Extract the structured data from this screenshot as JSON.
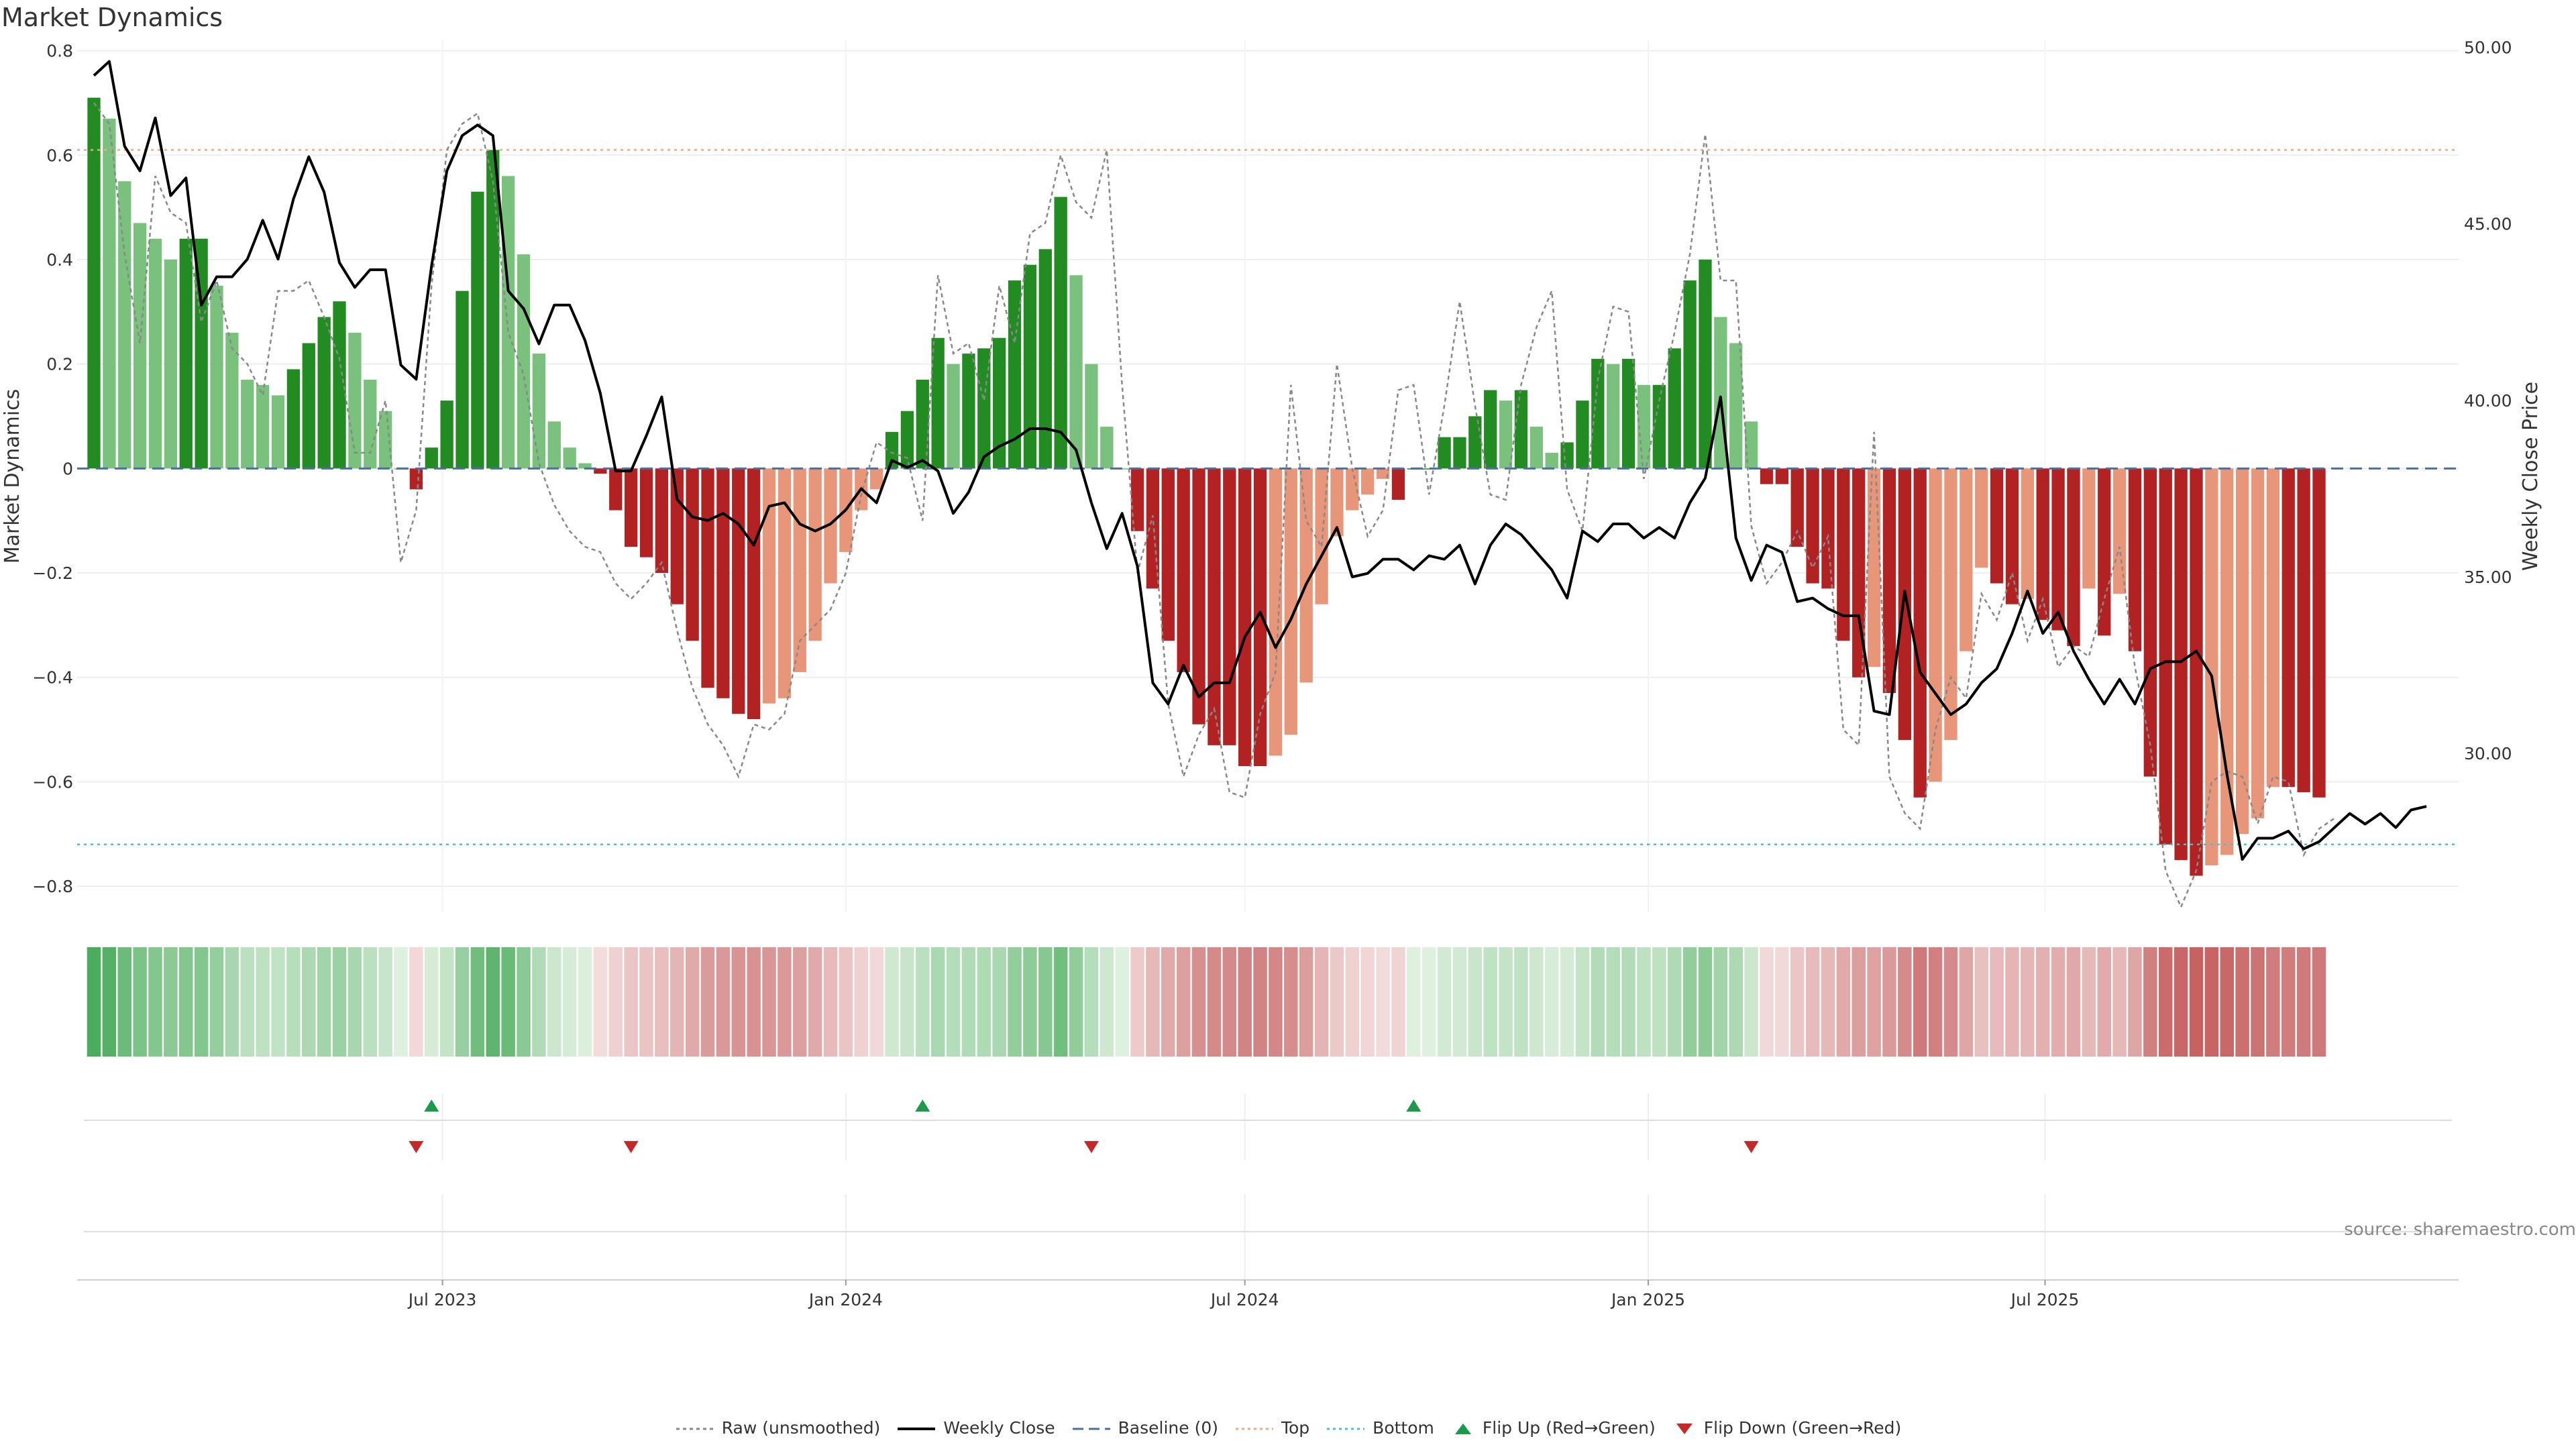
{
  "title": "Market Dynamics",
  "source": "source: sharemaestro.com",
  "colors": {
    "strong_green": "#228B22",
    "light_green": "#7BC17E",
    "strong_red": "#B22222",
    "light_red": "#E8967A",
    "top_line": "#F4A582",
    "bottom_line": "#4BC0C8",
    "baseline": "#4A6FA5",
    "close_line": "#000000",
    "raw_line": "#888888",
    "flip_up": "#1A9A4A",
    "flip_down": "#C62828"
  },
  "chart_data": {
    "type": "bar",
    "title": "Market Dynamics",
    "ylabel": "Market Dynamics",
    "y2label": "Weekly Close Price",
    "ylim": [
      -0.85,
      0.82
    ],
    "y2lim": [
      25.5,
      50.2
    ],
    "y_ticks": [
      -0.8,
      -0.6,
      -0.4,
      -0.2,
      0,
      0.2,
      0.4,
      0.6,
      0.8
    ],
    "y_tick_labels": [
      "−0.8",
      "−0.6",
      "−0.4",
      "−0.2",
      "0",
      "0.2",
      "0.4",
      "0.6",
      "0.8"
    ],
    "y2_ticks": [
      30,
      35,
      40,
      45,
      50
    ],
    "y2_tick_labels": [
      "30.00",
      "35.00",
      "40.00",
      "45.00",
      "50.00"
    ],
    "x_start": "2023-01-23",
    "x_end": "2025-12-29",
    "x_ticks": [
      "2023-07-01",
      "2024-01-01",
      "2024-07-01",
      "2025-01-01",
      "2025-07-01"
    ],
    "x_tick_labels": [
      "Jul 2023",
      "Jan 2024",
      "Jul 2024",
      "Jan 2025",
      "Jul 2025"
    ],
    "top_level": 0.61,
    "bottom_level": -0.72,
    "baseline": 0,
    "grid": true,
    "legend_position": "bottom-center",
    "series": [
      {
        "name": "Market Dynamics",
        "values": [
          0.71,
          0.67,
          0.55,
          0.47,
          0.44,
          0.4,
          0.44,
          0.44,
          0.35,
          0.26,
          0.17,
          0.16,
          0.14,
          0.19,
          0.24,
          0.29,
          0.32,
          0.26,
          0.17,
          0.11,
          0.0,
          -0.04,
          0.04,
          0.13,
          0.34,
          0.53,
          0.61,
          0.56,
          0.41,
          0.22,
          0.09,
          0.04,
          0.01,
          -0.01,
          -0.08,
          -0.15,
          -0.17,
          -0.2,
          -0.26,
          -0.33,
          -0.42,
          -0.44,
          -0.47,
          -0.48,
          -0.45,
          -0.44,
          -0.39,
          -0.33,
          -0.22,
          -0.16,
          -0.08,
          -0.04,
          0.07,
          0.11,
          0.17,
          0.25,
          0.2,
          0.22,
          0.23,
          0.25,
          0.36,
          0.39,
          0.42,
          0.52,
          0.37,
          0.2,
          0.08,
          0.0,
          -0.12,
          -0.23,
          -0.33,
          -0.39,
          -0.49,
          -0.53,
          -0.53,
          -0.57,
          -0.57,
          -0.55,
          -0.51,
          -0.41,
          -0.26,
          -0.13,
          -0.08,
          -0.05,
          -0.02,
          -0.06,
          0.0,
          0.0,
          0.06,
          0.06,
          0.1,
          0.15,
          0.13,
          0.15,
          0.08,
          0.03,
          0.05,
          0.13,
          0.21,
          0.2,
          0.21,
          0.16,
          0.16,
          0.23,
          0.36,
          0.4,
          0.29,
          0.24,
          0.09,
          -0.03,
          -0.03,
          -0.15,
          -0.22,
          -0.23,
          -0.33,
          -0.4,
          -0.38,
          -0.43,
          -0.52,
          -0.63,
          -0.6,
          -0.52,
          -0.35,
          -0.19,
          -0.22,
          -0.26,
          -0.25,
          -0.29,
          -0.31,
          -0.34,
          -0.23,
          -0.32,
          -0.24,
          -0.35,
          -0.59,
          -0.72,
          -0.75,
          -0.78,
          -0.76,
          -0.74,
          -0.7,
          -0.67,
          -0.61,
          -0.61,
          -0.62,
          -0.63
        ]
      },
      {
        "name": "Raw (unsmoothed)",
        "values": [
          0.7,
          0.66,
          0.41,
          0.24,
          0.56,
          0.49,
          0.47,
          0.28,
          0.36,
          0.23,
          0.2,
          0.14,
          0.34,
          0.34,
          0.36,
          0.29,
          0.21,
          0.03,
          0.03,
          0.13,
          -0.18,
          -0.08,
          0.35,
          0.61,
          0.66,
          0.68,
          0.55,
          0.26,
          0.18,
          0.01,
          -0.07,
          -0.12,
          -0.15,
          -0.16,
          -0.22,
          -0.25,
          -0.22,
          -0.18,
          -0.31,
          -0.42,
          -0.49,
          -0.53,
          -0.59,
          -0.49,
          -0.5,
          -0.47,
          -0.33,
          -0.3,
          -0.27,
          -0.2,
          -0.05,
          0.05,
          0.03,
          0.02,
          -0.1,
          0.37,
          0.22,
          0.24,
          0.13,
          0.35,
          0.24,
          0.45,
          0.47,
          0.6,
          0.51,
          0.48,
          0.61,
          0.16,
          -0.2,
          -0.09,
          -0.45,
          -0.59,
          -0.51,
          -0.46,
          -0.62,
          -0.63,
          -0.47,
          -0.39,
          0.16,
          -0.1,
          -0.15,
          0.2,
          0.0,
          -0.13,
          -0.08,
          0.15,
          0.16,
          -0.05,
          0.12,
          0.32,
          0.12,
          -0.05,
          -0.06,
          0.16,
          0.27,
          0.34,
          -0.04,
          -0.12,
          0.17,
          0.31,
          0.3,
          -0.02,
          0.13,
          0.26,
          0.41,
          0.64,
          0.36,
          0.36,
          -0.11,
          -0.22,
          -0.18,
          -0.12,
          -0.19,
          -0.13,
          -0.5,
          -0.53,
          0.07,
          -0.59,
          -0.66,
          -0.69,
          -0.5,
          -0.4,
          -0.44,
          -0.24,
          -0.29,
          -0.2,
          -0.33,
          -0.25,
          -0.38,
          -0.34,
          -0.36,
          -0.25,
          -0.15,
          -0.38,
          -0.53,
          -0.77,
          -0.84,
          -0.77,
          -0.6,
          -0.58,
          -0.59,
          -0.68,
          -0.59,
          -0.6,
          -0.74,
          -0.69,
          -0.67
        ]
      },
      {
        "name": "Weekly Close",
        "values": [
          49.2,
          49.6,
          47.2,
          46.5,
          48.0,
          45.8,
          46.3,
          42.7,
          43.5,
          43.5,
          44.0,
          45.1,
          44.0,
          45.7,
          46.9,
          45.9,
          43.9,
          43.2,
          43.7,
          43.7,
          41.0,
          40.6,
          43.8,
          46.5,
          47.5,
          47.8,
          47.5,
          43.1,
          42.6,
          41.6,
          42.7,
          42.7,
          41.7,
          40.2,
          38.0,
          38.0,
          39.0,
          40.1,
          37.2,
          36.7,
          36.6,
          36.8,
          36.5,
          35.9,
          37.0,
          37.1,
          36.5,
          36.3,
          36.5,
          36.9,
          37.5,
          37.1,
          38.3,
          38.1,
          38.3,
          38.0,
          36.8,
          37.4,
          38.4,
          38.7,
          38.9,
          39.2,
          39.2,
          39.1,
          38.6,
          37.1,
          35.8,
          36.8,
          35.3,
          32.0,
          31.4,
          32.5,
          31.6,
          32.0,
          32.0,
          33.3,
          34.0,
          33.0,
          33.8,
          34.8,
          35.6,
          36.4,
          35.0,
          35.1,
          35.5,
          35.5,
          35.2,
          35.6,
          35.5,
          35.9,
          34.8,
          35.9,
          36.5,
          36.2,
          35.7,
          35.2,
          34.4,
          36.3,
          36.0,
          36.5,
          36.5,
          36.1,
          36.4,
          36.1,
          37.1,
          37.8,
          40.1,
          36.1,
          34.9,
          35.9,
          35.7,
          34.3,
          34.4,
          34.1,
          33.9,
          33.9,
          31.2,
          31.1,
          34.6,
          32.3,
          31.7,
          31.1,
          31.4,
          32.0,
          32.4,
          33.4,
          34.6,
          33.4,
          34.0,
          32.9,
          32.1,
          31.4,
          32.1,
          31.4,
          32.4,
          32.6,
          32.6,
          32.9,
          32.2,
          29.4,
          27.0,
          27.6,
          27.6,
          27.8,
          27.3,
          27.5,
          27.9,
          28.3,
          28.0,
          28.3,
          27.9,
          28.4,
          28.5
        ]
      }
    ],
    "heat_strip": [
      0.71,
      0.67,
      0.55,
      0.47,
      0.44,
      0.4,
      0.44,
      0.44,
      0.35,
      0.26,
      0.17,
      0.16,
      0.14,
      0.19,
      0.24,
      0.29,
      0.32,
      0.26,
      0.17,
      0.11,
      0.0,
      -0.04,
      0.04,
      0.13,
      0.34,
      0.53,
      0.61,
      0.56,
      0.41,
      0.22,
      0.09,
      0.04,
      0.01,
      -0.01,
      -0.08,
      -0.15,
      -0.17,
      -0.2,
      -0.26,
      -0.33,
      -0.42,
      -0.44,
      -0.47,
      -0.48,
      -0.45,
      -0.44,
      -0.39,
      -0.33,
      -0.22,
      -0.16,
      -0.08,
      -0.04,
      0.07,
      0.11,
      0.17,
      0.25,
      0.2,
      0.22,
      0.23,
      0.25,
      0.36,
      0.39,
      0.42,
      0.52,
      0.37,
      0.2,
      0.08,
      0.0,
      -0.12,
      -0.23,
      -0.33,
      -0.39,
      -0.49,
      -0.53,
      -0.53,
      -0.57,
      -0.57,
      -0.55,
      -0.51,
      -0.41,
      -0.26,
      -0.13,
      -0.08,
      -0.05,
      -0.02,
      -0.06,
      0.0,
      0.0,
      0.06,
      0.06,
      0.1,
      0.15,
      0.13,
      0.15,
      0.08,
      0.03,
      0.05,
      0.13,
      0.21,
      0.2,
      0.21,
      0.16,
      0.16,
      0.23,
      0.36,
      0.4,
      0.29,
      0.24,
      0.09,
      -0.03,
      -0.03,
      -0.15,
      -0.22,
      -0.23,
      -0.33,
      -0.4,
      -0.38,
      -0.43,
      -0.52,
      -0.63,
      -0.6,
      -0.52,
      -0.35,
      -0.19,
      -0.22,
      -0.26,
      -0.25,
      -0.29,
      -0.31,
      -0.34,
      -0.23,
      -0.32,
      -0.24,
      -0.35,
      -0.59,
      -0.72,
      -0.75,
      -0.78,
      -0.76,
      -0.74,
      -0.7,
      -0.67,
      -0.61,
      -0.61,
      -0.62,
      -0.63
    ],
    "flip_up_dates": [
      "2023-06-26",
      "2024-02-05",
      "2024-09-16"
    ],
    "flip_down_dates": [
      "2023-06-19",
      "2023-09-25",
      "2024-04-22",
      "2025-02-17"
    ]
  },
  "legend": [
    {
      "label": "Raw (unsmoothed)",
      "icon": "dotted-line-icon"
    },
    {
      "label": "Weekly Close",
      "icon": "solid-line-icon"
    },
    {
      "label": "Baseline (0)",
      "icon": "dashed-line-icon"
    },
    {
      "label": "Top",
      "icon": "dotted-orange-line-icon"
    },
    {
      "label": "Bottom",
      "icon": "dotted-teal-line-icon"
    },
    {
      "label": "Flip Up (Red→Green)",
      "icon": "triangle-up-icon"
    },
    {
      "label": "Flip Down (Green→Red)",
      "icon": "triangle-down-icon"
    }
  ]
}
